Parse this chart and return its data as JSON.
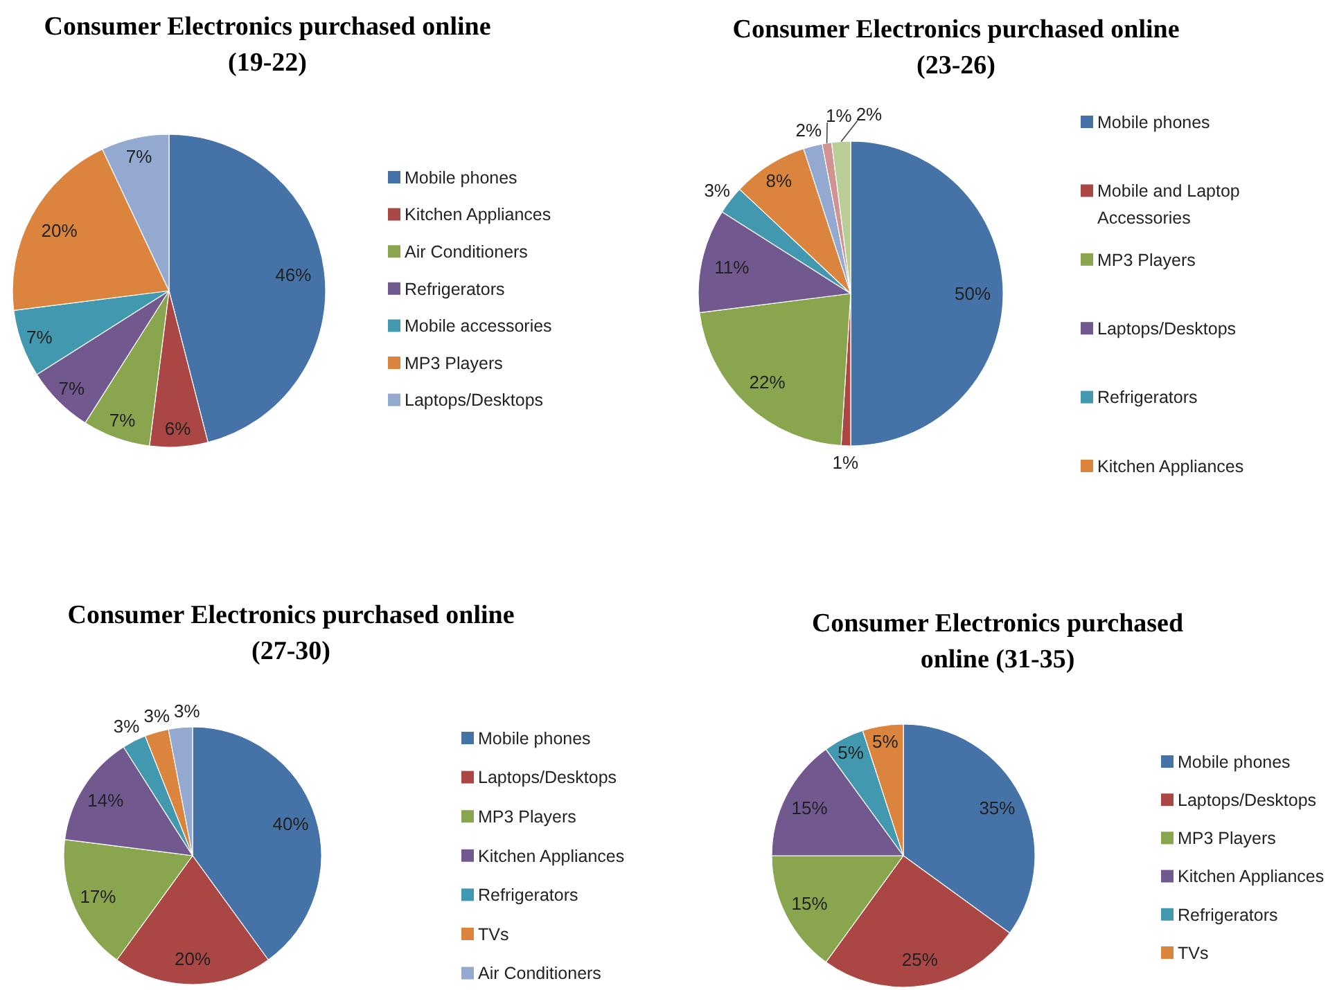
{
  "chart_data": [
    {
      "type": "pie",
      "title": "Consumer Electronics purchased online (19-22)",
      "categories": [
        "Mobile phones",
        "Kitchen Appliances",
        "Air Conditioners",
        "Refrigerators",
        "Mobile accessories",
        "MP3 Players",
        "Laptops/Desktops"
      ],
      "values": [
        46,
        6,
        7,
        7,
        7,
        20,
        7
      ],
      "value_labels": [
        "46%",
        "6%",
        "7%",
        "7%",
        "7%",
        "20%",
        "7%"
      ],
      "colors": [
        "#4572a7",
        "#aa4643",
        "#89a54e",
        "#71588f",
        "#4198af",
        "#db843d",
        "#93a9cf"
      ],
      "legend": "right"
    },
    {
      "type": "pie",
      "title": "Consumer Electronics purchased online (23-26)",
      "categories": [
        "Mobile phones",
        "Mobile and Laptop Accessories",
        "MP3 Players",
        "Laptops/Desktops",
        "Refrigerators",
        "Kitchen Appliances",
        null,
        null,
        null
      ],
      "values": [
        50,
        1,
        22,
        11,
        3,
        8,
        2,
        1,
        2
      ],
      "value_labels": [
        "50%",
        "1%",
        "22%",
        "11%",
        "3%",
        "8%",
        "2%",
        "1%",
        "2%"
      ],
      "colors": [
        "#4572a7",
        "#aa4643",
        "#89a54e",
        "#71588f",
        "#4198af",
        "#db843d",
        "#93a9cf",
        "#d19392",
        "#b9cd96"
      ],
      "legend": "right"
    },
    {
      "type": "pie",
      "title": "Consumer Electronics purchased online (27-30)",
      "categories": [
        "Mobile phones",
        "Laptops/Desktops",
        "MP3 Players",
        "Kitchen Appliances",
        "Refrigerators",
        "TVs",
        "Air Conditioners"
      ],
      "values": [
        40,
        20,
        17,
        14,
        3,
        3,
        3
      ],
      "value_labels": [
        "40%",
        "20%",
        "17%",
        "14%",
        "3%",
        "3%",
        "3%"
      ],
      "colors": [
        "#4572a7",
        "#aa4643",
        "#89a54e",
        "#71588f",
        "#4198af",
        "#db843d",
        "#93a9cf"
      ],
      "legend": "right"
    },
    {
      "type": "pie",
      "title": "Consumer Electronics purchased online (31-35)",
      "categories": [
        "Mobile phones",
        "Laptops/Desktops",
        "MP3 Players",
        "Kitchen Appliances",
        "Refrigerators",
        "TVs"
      ],
      "values": [
        35,
        25,
        15,
        15,
        5,
        5
      ],
      "value_labels": [
        "35%",
        "25%",
        "15%",
        "15%",
        "5%",
        "5%"
      ],
      "colors": [
        "#4572a7",
        "#aa4643",
        "#89a54e",
        "#71588f",
        "#4198af",
        "#db843d"
      ],
      "legend": "right"
    }
  ]
}
